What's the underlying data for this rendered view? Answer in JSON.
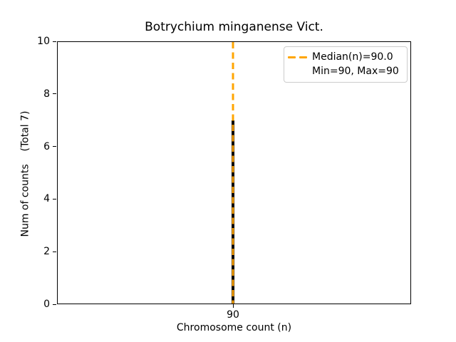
{
  "chart_data": {
    "type": "bar",
    "title": "Botrychium minganense Vict.",
    "xlabel": "Chromosome count (n)",
    "ylabel": "Num of counts    (Total 7)",
    "categories": [
      "90"
    ],
    "values": [
      7
    ],
    "total_count": 7,
    "ylim": [
      0,
      10
    ],
    "yticks": [
      0,
      2,
      4,
      6,
      8,
      10
    ],
    "xticks": [
      "90"
    ],
    "bar_color": "#000000",
    "grid": "off",
    "median_line": {
      "value": 90.0,
      "color": "#FFA500",
      "linestyle": "dashed"
    },
    "stats": {
      "median": 90.0,
      "min": 90,
      "max": 90
    },
    "legend": {
      "position": "upper right",
      "items": [
        {
          "label": "Median(n)=90.0",
          "marker": "orange-dashed-line"
        },
        {
          "label": "Min=90, Max=90",
          "marker": "none"
        }
      ]
    }
  }
}
